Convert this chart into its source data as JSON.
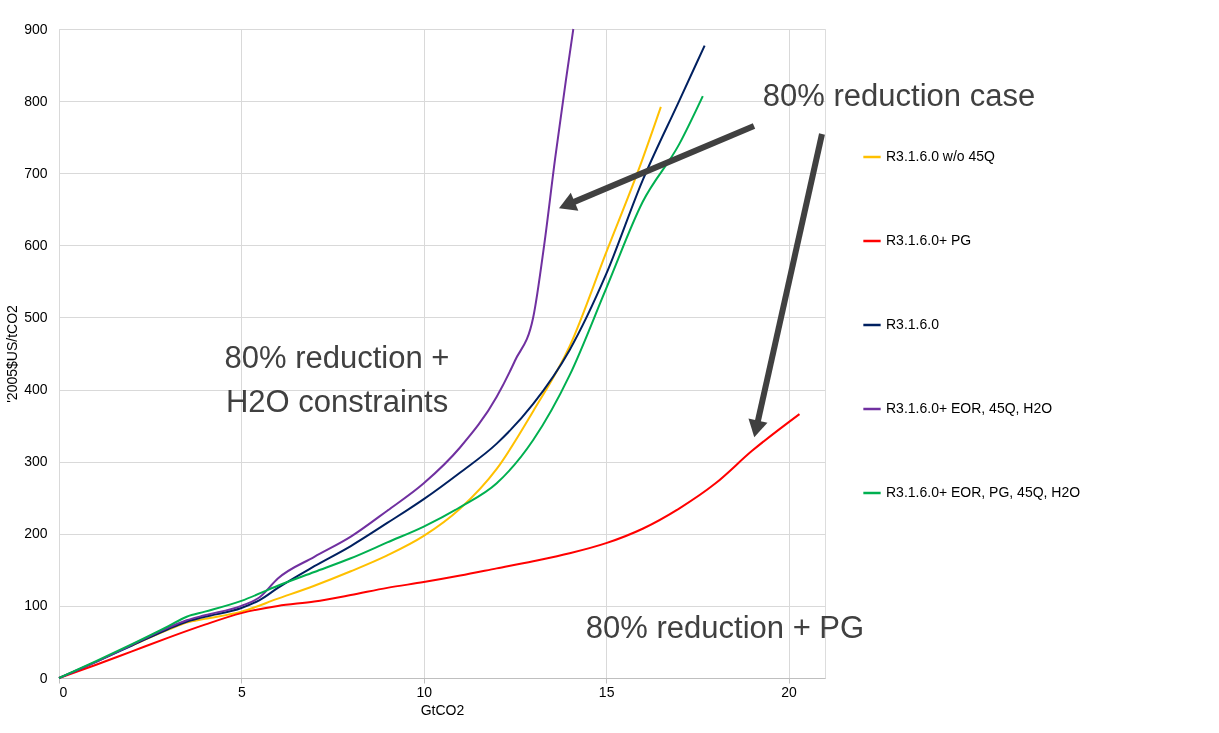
{
  "chart_data": {
    "type": "line",
    "xlabel": "GtCO2",
    "ylabel": "'2005$US/tCO2",
    "xlim": [
      0,
      21
    ],
    "xticks": [
      0,
      5,
      10,
      15,
      20
    ],
    "ylim": [
      0,
      900
    ],
    "yticks": [
      0,
      100,
      200,
      300,
      400,
      500,
      600,
      700,
      800,
      900
    ],
    "grid": true,
    "legend": "right",
    "line_style": "solid",
    "marker": "none",
    "series": [
      {
        "name": "R3.1.6.0 w/o 45Q",
        "color": "#ffc000",
        "x": [
          2,
          3,
          3.5,
          4,
          5,
          6,
          7,
          8,
          9,
          10,
          11,
          12,
          13,
          14,
          15,
          16,
          16.5
        ],
        "values": [
          45,
          67,
          77,
          82,
          92,
          110,
          128,
          148,
          170,
          197,
          235,
          290,
          370,
          460,
          590,
          720,
          792
        ]
      },
      {
        "name": "R3.1.6.0+ PG",
        "color": "#ff0000",
        "x": [
          0,
          1,
          2,
          3,
          4,
          5,
          6,
          7,
          8,
          9,
          10,
          11,
          12,
          13,
          14,
          15,
          16,
          17,
          18,
          19,
          20.3
        ],
        "values": [
          0,
          18,
          37,
          56,
          74,
          90,
          100,
          106,
          115,
          125,
          133,
          142,
          152,
          162,
          173,
          187,
          207,
          235,
          270,
          315,
          366
        ]
      },
      {
        "name": "R3.1.6.0",
        "color": "#002060",
        "x": [
          0,
          1,
          2,
          3,
          3.5,
          4,
          5,
          5.5,
          6,
          7,
          8,
          9,
          10,
          11,
          12,
          13,
          14,
          15,
          16,
          17,
          17.7
        ],
        "values": [
          0,
          22,
          45,
          68,
          78,
          85,
          97,
          108,
          125,
          155,
          183,
          215,
          248,
          285,
          325,
          380,
          455,
          560,
          690,
          800,
          877
        ]
      },
      {
        "name": "R3.1.6.0+ EOR, 45Q, H2O",
        "color": "#7030a0",
        "x": [
          0,
          1,
          2,
          3,
          3.5,
          4,
          5,
          5.5,
          6,
          7,
          8,
          9,
          10,
          11,
          12,
          12.5,
          13,
          13.3,
          13.6,
          13.9,
          14.1
        ],
        "values": [
          0,
          22,
          46,
          70,
          80,
          87,
          100,
          112,
          138,
          168,
          196,
          232,
          270,
          320,
          390,
          440,
          500,
          600,
          720,
          830,
          900
        ]
      },
      {
        "name": "R3.1.6.0+ EOR, PG, 45Q, H2O",
        "color": "#00b050",
        "x": [
          0,
          1,
          2,
          3,
          3.5,
          4,
          5,
          6,
          7,
          8,
          9,
          10,
          11,
          12,
          13,
          14,
          15,
          16,
          17,
          17.65
        ],
        "values": [
          0,
          23,
          47,
          72,
          85,
          92,
          107,
          128,
          147,
          166,
          188,
          210,
          237,
          270,
          330,
          420,
          540,
          660,
          740,
          807
        ]
      }
    ],
    "annotations": [
      "80% reduction case",
      "80% reduction +\nH2O constraints",
      "80% reduction + PG"
    ]
  }
}
